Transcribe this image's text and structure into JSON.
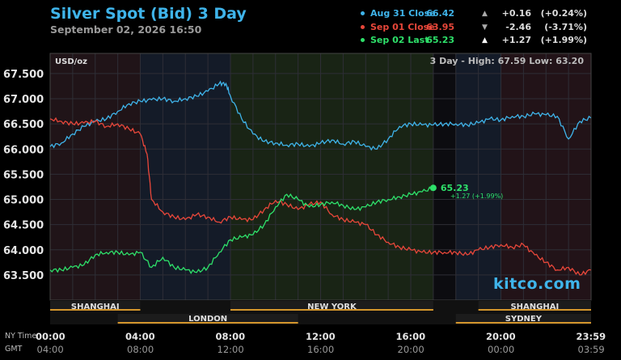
{
  "title": "Silver Spot (Bid) 3 Day",
  "subtitle": "September 02, 2026 16:50",
  "legend": [
    {
      "name": "Aug 31 Close",
      "price": "66.42",
      "arrow": "▲",
      "change": "+0.16",
      "percent": "(+0.24%)",
      "color": "#3fb4ea",
      "arrow_color": "#aaaaaa",
      "name_color": "#3fb4ea"
    },
    {
      "name": "Sep 01 Close",
      "price": "63.95",
      "arrow": "▼",
      "change": "-2.46",
      "percent": "(-3.71%)",
      "color": "#e8473a",
      "arrow_color": "#aaaaaa",
      "name_color": "#e8473a"
    },
    {
      "name": "Sep 02 Last",
      "price": "65.23",
      "arrow": "▲",
      "change": "+1.27",
      "percent": "(+1.99%)",
      "color": "#2ee06a",
      "arrow_color": "#ffffff",
      "name_color": "#2ee06a"
    }
  ],
  "unit_label": "USD/oz",
  "range_label": "3 Day - High: 67.59  Low: 63.20",
  "last_price_label": "65.23",
  "last_change_label": "+1.27 (+1.99%)",
  "watermark": "kitco.com",
  "sessions_top": [
    "SHANGHAI",
    "NEW YORK",
    "SHANGHAI"
  ],
  "sessions_bottom": [
    "LONDON",
    "SYDNEY"
  ],
  "footer": {
    "ny_label": "NY Time",
    "gmt_label": "GMT",
    "ny_times": [
      "00:00",
      "04:00",
      "08:00",
      "12:00",
      "16:00",
      "20:00",
      "23:59"
    ],
    "gmt_times": [
      "04:00",
      "08:00",
      "12:00",
      "16:00",
      "20:00",
      "00:00",
      "03:59"
    ]
  },
  "chart_data": {
    "type": "line",
    "title": "Silver Spot (Bid) 3 Day",
    "ylabel": "USD/oz",
    "ylim": [
      63.0,
      67.9
    ],
    "xlim": [
      0,
      24
    ],
    "yticks": [
      "67.500",
      "67.000",
      "66.500",
      "66.000",
      "65.500",
      "65.000",
      "64.500",
      "64.000",
      "63.500"
    ],
    "ytick_values": [
      67.5,
      67.0,
      66.5,
      66.0,
      65.5,
      65.0,
      64.5,
      64.0,
      63.5
    ],
    "grid": true,
    "legend": "top-right",
    "series": [
      {
        "name": "Aug 31 Close",
        "color": "#3fb4ea",
        "x": [
          0,
          0.5,
          1,
          1.5,
          2,
          2.5,
          3,
          3.5,
          4,
          4.5,
          5,
          5.5,
          6,
          6.5,
          7,
          7.5,
          7.8,
          8,
          8.5,
          9,
          9.5,
          10,
          10.5,
          11,
          11.5,
          12,
          12.5,
          13,
          13.5,
          14,
          14.5,
          15,
          15.5,
          16,
          16.5,
          17,
          17.5,
          18,
          18.5,
          19,
          19.5,
          20,
          20.5,
          21,
          21.5,
          22,
          22.5,
          23,
          23.5,
          23.99
        ],
        "y": [
          66.05,
          66.12,
          66.3,
          66.45,
          66.55,
          66.6,
          66.75,
          66.9,
          66.95,
          66.98,
          67.0,
          66.95,
          67.0,
          67.05,
          67.15,
          67.3,
          67.3,
          67.05,
          66.6,
          66.3,
          66.15,
          66.12,
          66.08,
          66.1,
          66.05,
          66.12,
          66.18,
          66.1,
          66.15,
          66.05,
          66.0,
          66.2,
          66.45,
          66.5,
          66.48,
          66.48,
          66.5,
          66.5,
          66.48,
          66.52,
          66.6,
          66.58,
          66.65,
          66.65,
          66.7,
          66.68,
          66.65,
          66.2,
          66.55,
          66.62
        ]
      },
      {
        "name": "Sep 01 Close",
        "color": "#e8473a",
        "x": [
          0,
          0.5,
          1,
          1.5,
          2,
          2.5,
          3,
          3.5,
          4,
          4.3,
          4.5,
          5,
          5.5,
          6,
          6.5,
          7,
          7.5,
          8,
          8.5,
          9,
          9.5,
          10,
          10.5,
          11,
          11.5,
          12,
          12.5,
          13,
          13.5,
          14,
          14.5,
          15,
          15.5,
          16,
          16.5,
          17,
          17.5,
          18,
          18.5,
          19,
          19.5,
          20,
          20.5,
          21,
          21.5,
          22,
          22.5,
          23,
          23.5,
          23.99
        ],
        "y": [
          66.6,
          66.55,
          66.5,
          66.52,
          66.55,
          66.45,
          66.5,
          66.4,
          66.3,
          65.9,
          65.0,
          64.75,
          64.65,
          64.6,
          64.7,
          64.65,
          64.55,
          64.65,
          64.6,
          64.6,
          64.8,
          64.98,
          64.9,
          64.8,
          64.9,
          64.95,
          64.7,
          64.6,
          64.55,
          64.5,
          64.3,
          64.15,
          64.05,
          64.0,
          63.95,
          63.95,
          63.95,
          63.95,
          63.9,
          64.0,
          64.05,
          64.1,
          64.05,
          64.1,
          63.9,
          63.75,
          63.6,
          63.65,
          63.5,
          63.6
        ]
      },
      {
        "name": "Sep 02 Last",
        "color": "#2ee06a",
        "x": [
          0,
          0.5,
          1,
          1.5,
          2,
          2.5,
          3,
          3.5,
          4,
          4.5,
          5,
          5.5,
          6,
          6.5,
          7,
          7.5,
          8,
          8.5,
          9,
          9.5,
          10,
          10.5,
          11,
          11.5,
          12,
          12.5,
          13,
          13.5,
          14,
          14.5,
          15,
          15.5,
          16,
          16.5,
          17
        ],
        "y": [
          63.6,
          63.6,
          63.65,
          63.7,
          63.9,
          63.95,
          63.95,
          63.9,
          63.95,
          63.65,
          63.85,
          63.65,
          63.6,
          63.55,
          63.65,
          63.95,
          64.2,
          64.25,
          64.3,
          64.5,
          64.85,
          65.1,
          65.0,
          64.85,
          64.9,
          64.95,
          64.88,
          64.8,
          64.85,
          64.95,
          65.0,
          65.05,
          65.1,
          65.15,
          65.23
        ]
      }
    ]
  }
}
